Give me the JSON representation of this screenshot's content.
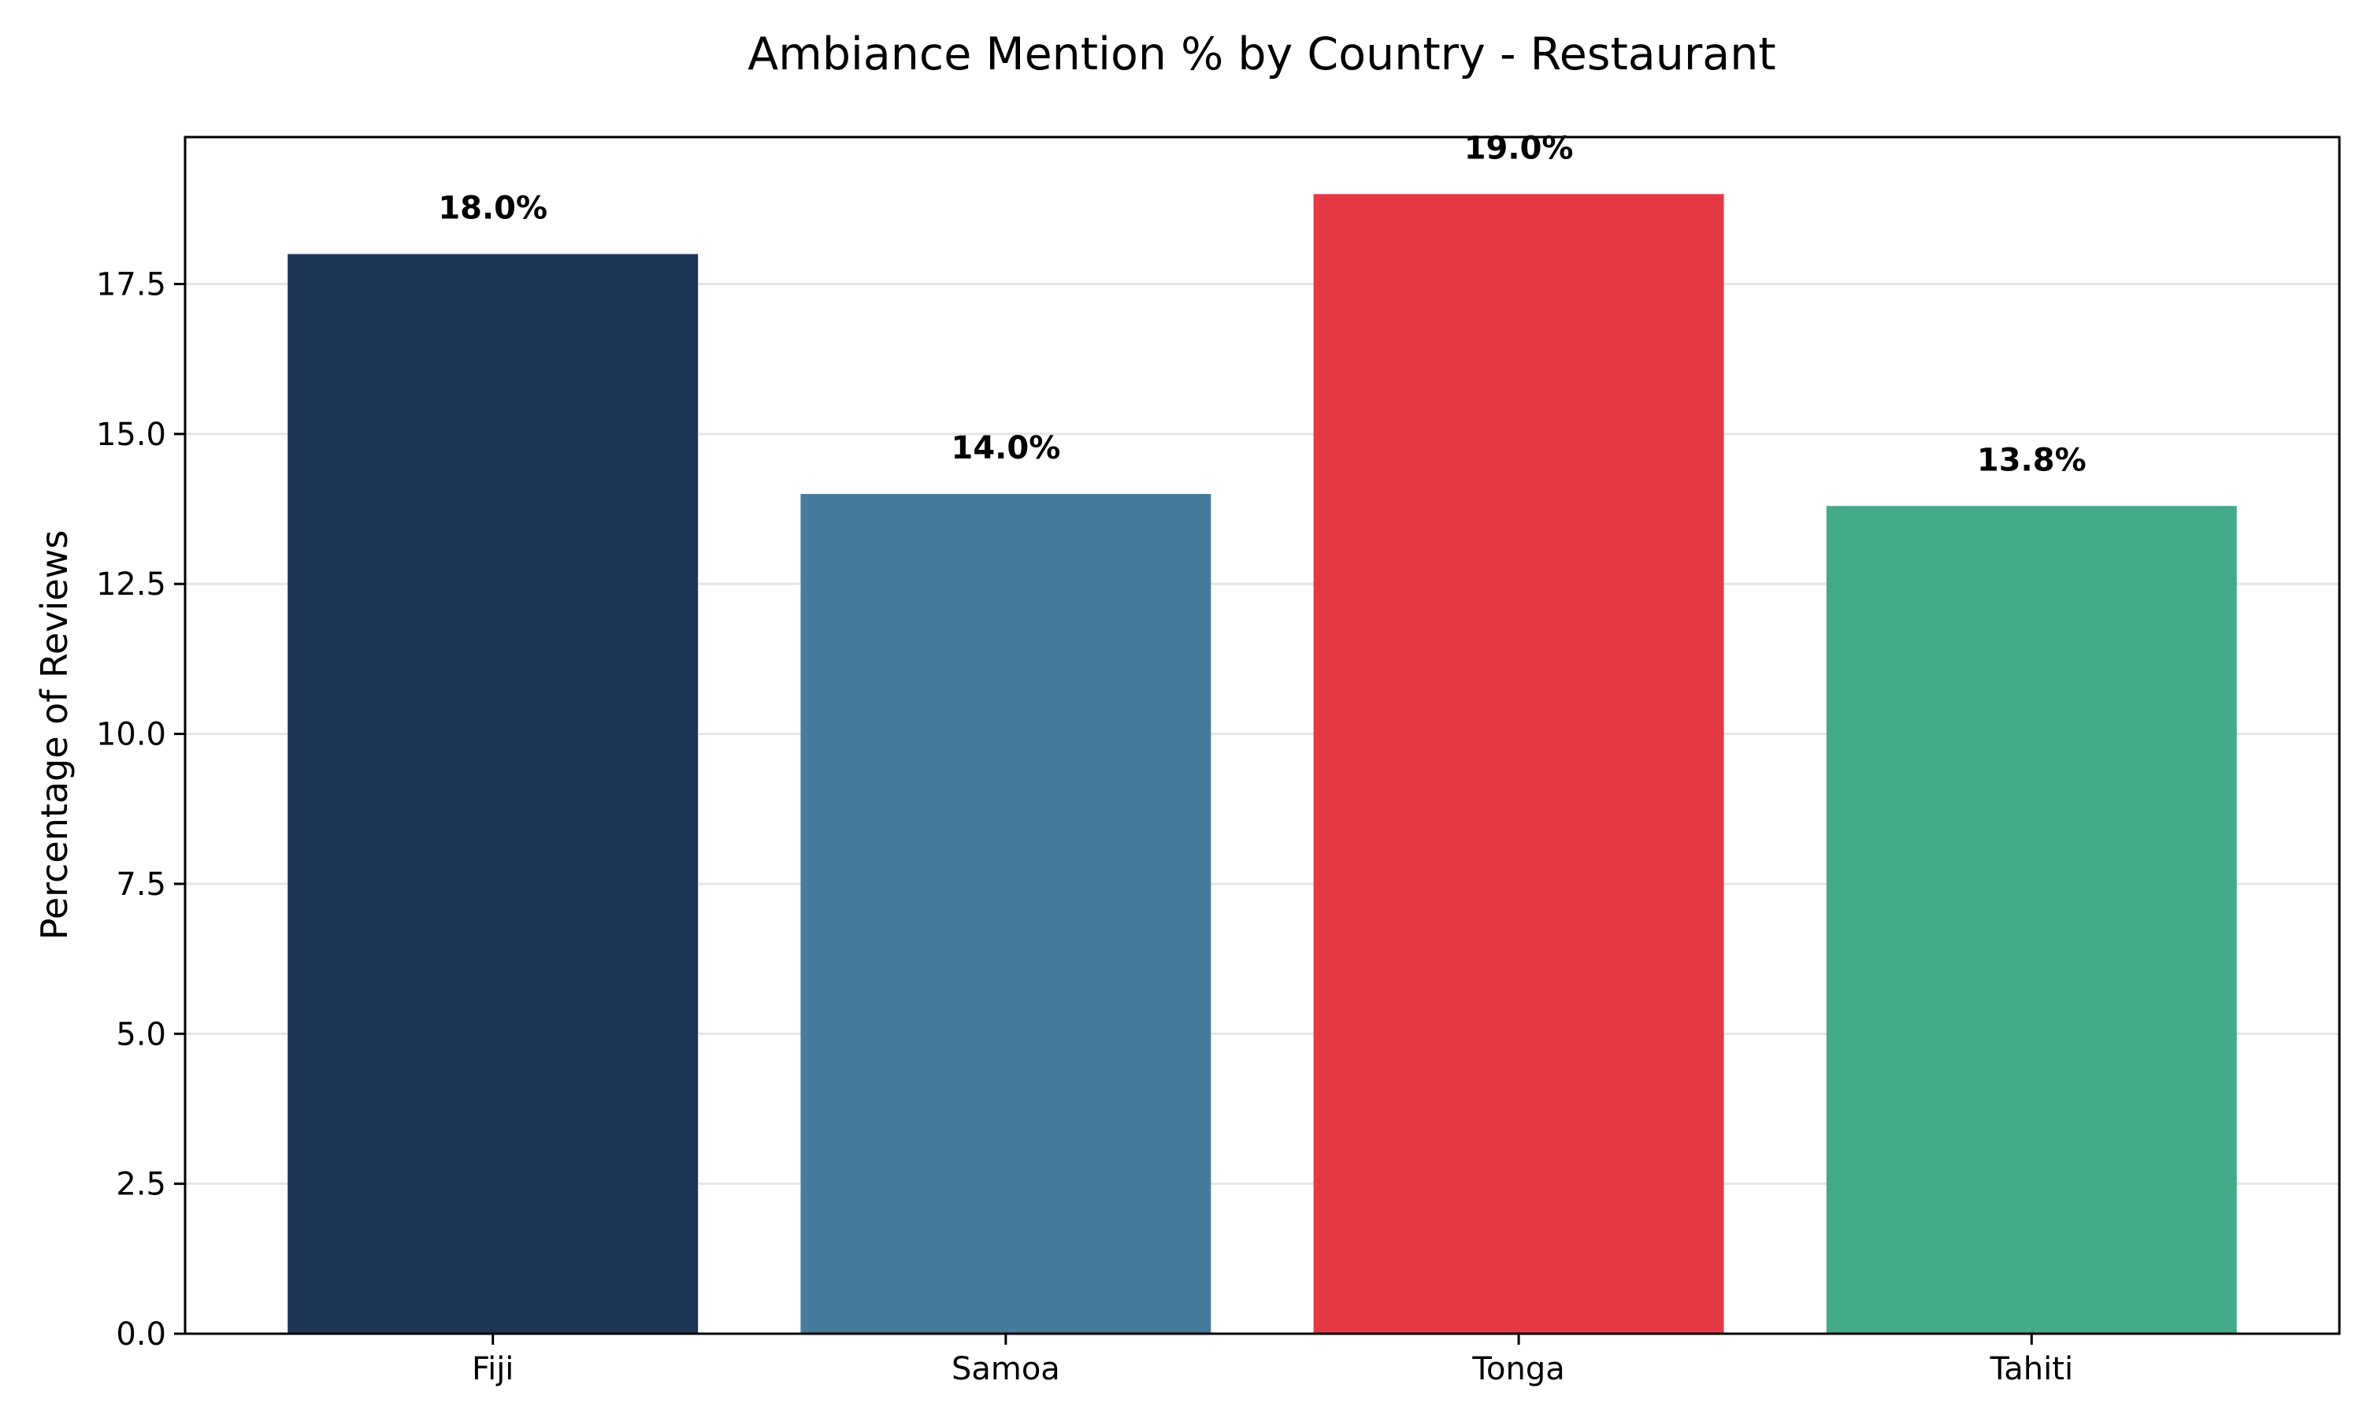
{
  "chart_data": {
    "type": "bar",
    "title": "Ambiance Mention % by Country - Restaurant",
    "xlabel": "",
    "ylabel": "Percentage of Reviews",
    "categories": [
      "Fiji",
      "Samoa",
      "Tonga",
      "Tahiti"
    ],
    "values": [
      18.0,
      14.0,
      19.0,
      13.8
    ],
    "value_labels": [
      "18.0%",
      "14.0%",
      "19.0%",
      "13.8%"
    ],
    "colors": [
      "#1f3657",
      "#477b9c",
      "#e63946",
      "#44aa8a"
    ],
    "ylim": [
      0,
      19.95
    ],
    "yticks": [
      0.0,
      2.5,
      5.0,
      7.5,
      10.0,
      12.5,
      15.0,
      17.5
    ],
    "ytick_labels": [
      "0.0",
      "2.5",
      "5.0",
      "7.5",
      "10.0",
      "12.5",
      "15.0",
      "17.5"
    ],
    "grid": "y-axis, light gray",
    "legend": "none"
  }
}
